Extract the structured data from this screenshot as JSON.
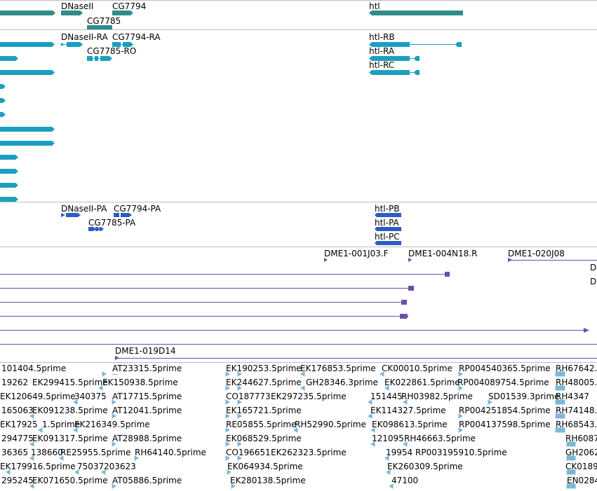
{
  "colors": {
    "gene": "#2f8c8c",
    "transcript": "#1a9fbf",
    "protein": "#2e5cc4",
    "clone": "#6a4fa8",
    "est": "#7bb8d8",
    "separator": "#bdbdbd"
  },
  "gene_track": {
    "labels": [
      "DNaseII",
      "CG7794",
      "CG7785",
      "htl"
    ]
  },
  "transcript_track": {
    "labels": [
      "DNaseII-RA",
      "CG7794-RA",
      "CG7785-RO",
      "htl-RB",
      "htl-RA",
      "htl-RC"
    ]
  },
  "protein_track": {
    "labels": [
      "DNaseII-PA",
      "CG7794-PA",
      "CG7785-PA",
      "htl-PB",
      "htl-PA",
      "htl-PC"
    ]
  },
  "clone_track": {
    "labels": [
      "DME1-001J03.F",
      "DME1-004N18.R",
      "DME1-020J08",
      "D",
      "D",
      "DME1-019D14"
    ]
  },
  "est_track": {
    "rows": [
      [
        "101404.5prime",
        "AT23315.5prime",
        "EK190253.5prime",
        "EK176853.5prime",
        "CK00010.5prime",
        "RP004540365.5prime",
        "RH67642."
      ],
      [
        "19262",
        "EK299415.5prime",
        "EK150938.5prime",
        "EK244627.5prime",
        "GH28346.3prime",
        "EK022861.5prime",
        "RP004089754.5prime",
        "RH48005."
      ],
      [
        "EK120649.5prime",
        "340375",
        "AT17715.5prime",
        "CO187773",
        "EK297235.5prime",
        "151445",
        "RH03982.5prime",
        "SD01539.3prime",
        "RH4347"
      ],
      [
        "165063",
        "EK091238.5prime",
        "AT12041.5prime",
        "EK165721.5prime",
        "EK114327.5prime",
        "RP004251854.5prime",
        "RH74148."
      ],
      [
        "EK17925",
        "1.5prime",
        "EK216349.5prime",
        "RE05855.5prime",
        "RH52990.5prime",
        "EK098613.5prime",
        "RP004137598.5prime",
        "RH68543."
      ],
      [
        "294775",
        "EK091317.5prime",
        "AT28988.5prime",
        "EK068529.5prime",
        "121095",
        "RH46663.5prime",
        "RH6087"
      ],
      [
        "36365",
        "138660",
        "RE25955.5prime",
        "RH64140.5prime",
        "CO196651",
        "EK262323.5prime",
        "19954",
        "RP003195910.5prime",
        "GH2062"
      ],
      [
        "EK179916.5prime",
        "75037",
        "203623",
        "EK064934.5prime",
        "EK260309.5prime",
        "CK0189"
      ],
      [
        "295245",
        "EK071650.5prime",
        "AT05886.5prime",
        "EK280138.5prime",
        "47100",
        "EN0284"
      ]
    ]
  }
}
